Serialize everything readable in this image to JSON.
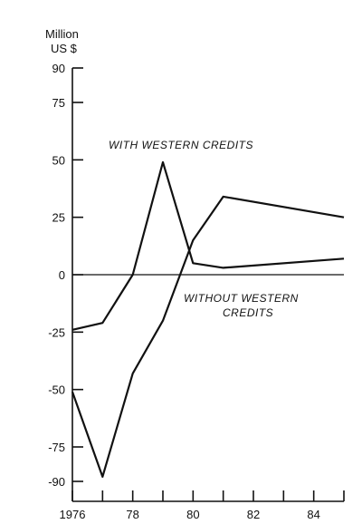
{
  "chart_data": {
    "type": "line",
    "title": "",
    "ylabel_lines": [
      "Million",
      "US $"
    ],
    "xlabel": "",
    "x_ticks": [
      "1976",
      "78",
      "80",
      "82",
      "84"
    ],
    "x_tick_values": [
      1976,
      1978,
      1980,
      1982,
      1984
    ],
    "y_ticks": [
      "90",
      "75",
      "50",
      "25",
      "0",
      "-25",
      "-50",
      "-75",
      "-90"
    ],
    "y_tick_values": [
      90,
      75,
      50,
      25,
      0,
      -25,
      -50,
      -75,
      -90
    ],
    "xlim": [
      1976,
      1985
    ],
    "ylim": [
      -90,
      90
    ],
    "grid": false,
    "series": [
      {
        "name": "WITH WESTERN CREDITS",
        "x": [
          1976,
          1977,
          1978,
          1979,
          1980,
          1981,
          1985
        ],
        "y": [
          -24,
          -21,
          0,
          49,
          5,
          3,
          7
        ]
      },
      {
        "name": "WITHOUT WESTERN CREDITS",
        "x": [
          1976,
          1977,
          1978,
          1979,
          1980,
          1981,
          1985
        ],
        "y": [
          -51,
          -88,
          -43,
          -20,
          15,
          34,
          25
        ]
      }
    ],
    "annotations": [
      {
        "lines": [
          "WITH WESTERN CREDITS"
        ]
      },
      {
        "lines": [
          "WITHOUT WESTERN",
          "CREDITS"
        ]
      }
    ]
  }
}
